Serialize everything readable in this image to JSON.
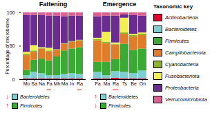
{
  "chart_data": [
    {
      "type": "bar",
      "stacked": true,
      "title": "Fattening",
      "ylabel": "Percentage of microbiome",
      "categories": [
        "Mo",
        "Sa",
        "Na",
        "Fa",
        "Mh",
        "Ma",
        "In",
        "Ra"
      ],
      "underlined": [
        "Fa",
        "Ra"
      ],
      "series": [
        {
          "name": "Actinobacteria",
          "color": "#e8002d",
          "values": [
            1,
            1,
            1,
            1,
            1,
            1,
            1,
            1
          ]
        },
        {
          "name": "Bacteroidetes",
          "color": "#7ecfd4",
          "values": [
            5,
            10,
            8,
            5,
            5,
            7,
            8,
            7
          ]
        },
        {
          "name": "Firmicutes",
          "color": "#3aaa35",
          "values": [
            8,
            18,
            22,
            22,
            28,
            35,
            37,
            40
          ]
        },
        {
          "name": "Campilobacterota",
          "color": "#e07d2a",
          "values": [
            22,
            12,
            15,
            14,
            10,
            10,
            10,
            10
          ]
        },
        {
          "name": "Cyanobacteria",
          "color": "#8db52a",
          "values": [
            2,
            2,
            1,
            1,
            1,
            1,
            1,
            1
          ]
        },
        {
          "name": "Fusobacteriota",
          "color": "#f0f050",
          "values": [
            3,
            8,
            1,
            4,
            0,
            0,
            0,
            0
          ]
        },
        {
          "name": "Proteobacteria",
          "color": "#6a2d8f",
          "values": [
            55,
            45,
            48,
            48,
            50,
            40,
            38,
            36
          ]
        },
        {
          "name": "Verrucomicrobiota",
          "color": "#d96090",
          "values": [
            4,
            4,
            4,
            5,
            5,
            6,
            5,
            5
          ]
        }
      ],
      "ylim": [
        0,
        100
      ],
      "yticks": [
        0,
        50,
        100
      ],
      "annotations": [
        {
          "symbol": "↓",
          "color": "#7ecfd4",
          "text": "Bacteroidetes"
        },
        {
          "symbol": "↑",
          "color": "#3aaa35",
          "text": "Firmicutes"
        }
      ]
    },
    {
      "type": "bar",
      "stacked": true,
      "title": "Emergence",
      "categories": [
        "Fa",
        "Ma",
        "Ra",
        "Ts",
        "Be",
        "On"
      ],
      "underlined": [
        "Ra"
      ],
      "series": [
        {
          "name": "Actinobacteria",
          "color": "#e8002d",
          "values": [
            1,
            1,
            2,
            1,
            1,
            1
          ]
        },
        {
          "name": "Bacteroidetes",
          "color": "#7ecfd4",
          "values": [
            10,
            5,
            10,
            10,
            8,
            12
          ]
        },
        {
          "name": "Firmicutes",
          "color": "#3aaa35",
          "values": [
            15,
            20,
            18,
            42,
            35,
            33
          ]
        },
        {
          "name": "Campilobacterota",
          "color": "#e07d2a",
          "values": [
            32,
            28,
            22,
            15,
            20,
            20
          ]
        },
        {
          "name": "Cyanobacteria",
          "color": "#8db52a",
          "values": [
            2,
            2,
            1,
            2,
            2,
            2
          ]
        },
        {
          "name": "Fusobacteriota",
          "color": "#f0f050",
          "values": [
            2,
            15,
            2,
            22,
            2,
            2
          ]
        },
        {
          "name": "Proteobacteria",
          "color": "#6a2d8f",
          "values": [
            32,
            24,
            40,
            5,
            28,
            25
          ]
        },
        {
          "name": "Verrucomicrobiota",
          "color": "#d96090",
          "values": [
            6,
            5,
            5,
            3,
            4,
            5
          ]
        }
      ],
      "ylim": [
        0,
        100
      ],
      "tick_labels": "x",
      "legend": "right",
      "legend_title": "Taxonomic key",
      "annotations": [
        {
          "symbol": "↑",
          "color": "#7ecfd4",
          "text": "Bacteroidetes"
        },
        {
          "symbol": "↓",
          "color": "#3aaa35",
          "text": "Firmicutes"
        }
      ]
    }
  ]
}
